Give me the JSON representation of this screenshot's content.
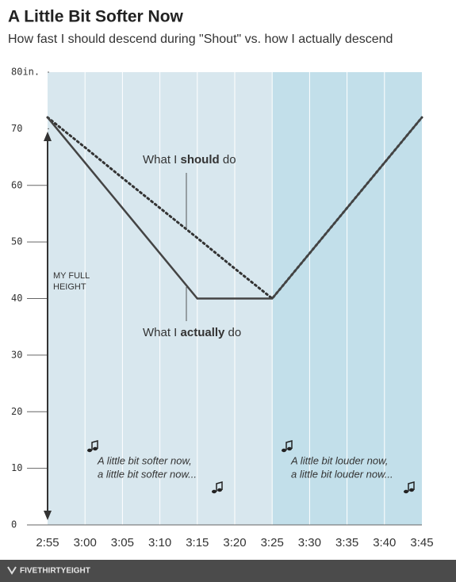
{
  "chart_data": {
    "type": "line",
    "title": "A Little Bit Softer Now",
    "subtitle": "How fast I should descend during \"Shout\" vs. how I actually descend",
    "x": [
      "2:55",
      "3:00",
      "3:05",
      "3:10",
      "3:15",
      "3:20",
      "3:25",
      "3:30",
      "3:35",
      "3:40",
      "3:45"
    ],
    "series": [
      {
        "name": "What I should do",
        "color": "#333333",
        "style": "dotted",
        "values": [
          72,
          66.7,
          61.3,
          56,
          50.7,
          45.3,
          40,
          48,
          56,
          64,
          72
        ]
      },
      {
        "name": "What I actually do",
        "color": "#444444",
        "style": "solid",
        "values": [
          72,
          64,
          56,
          48,
          40,
          40,
          40,
          48,
          56,
          64,
          72
        ]
      }
    ],
    "ylim": [
      0,
      80
    ],
    "yticks": [
      0,
      10,
      20,
      30,
      40,
      50,
      60,
      {
        "value": 70,
        "label": "70"
      },
      {
        "value": 80,
        "label": "80in."
      }
    ],
    "grid": true,
    "annotations": {
      "should": [
        "What I ",
        "should",
        " do"
      ],
      "actually": [
        "What I ",
        "actually",
        " do"
      ],
      "height": [
        "MY FULL",
        "HEIGHT"
      ],
      "softer": [
        "A little bit softer now,",
        "a little bit softer now..."
      ],
      "louder": [
        "A little bit louder now,",
        "a little bit louder now..."
      ]
    },
    "footer": "FIVETHIRTYEIGHT"
  }
}
